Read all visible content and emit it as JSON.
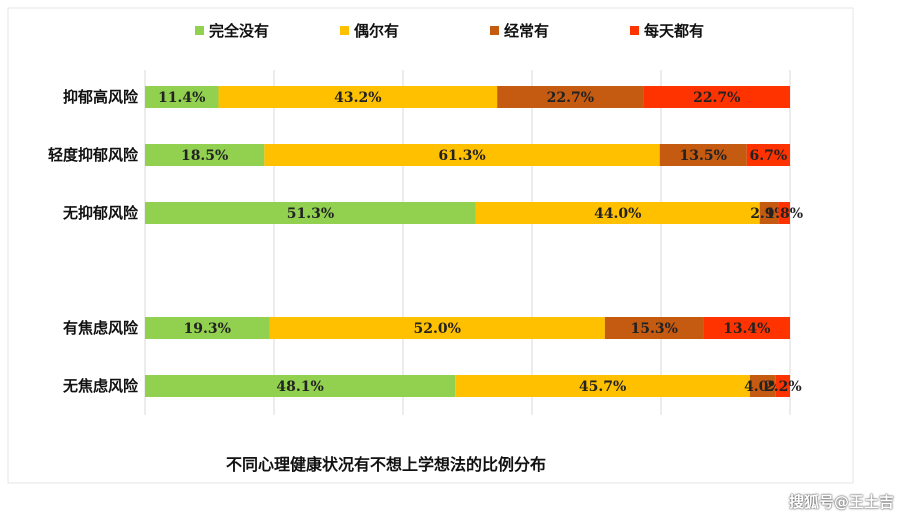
{
  "chart_data": {
    "type": "bar",
    "orientation": "horizontal",
    "stacked": true,
    "percent": true,
    "title": "不同心理健康状况有不想上学想法的比例分布",
    "legend_position": "top",
    "grid": true,
    "xlim": [
      0,
      100
    ],
    "categories": [
      "抑郁高风险",
      "轻度抑郁风险",
      "无抑郁风险",
      "有焦虑风险",
      "无焦虑风险"
    ],
    "series": [
      {
        "name": "完全没有",
        "color": "#92d050",
        "values": [
          11.4,
          18.5,
          51.3,
          19.3,
          48.1
        ],
        "labels": [
          "11.4%",
          "18.5%",
          "51.3%",
          "19.3%",
          "48.1%"
        ]
      },
      {
        "name": "偶尔有",
        "color": "#ffc000",
        "values": [
          43.2,
          61.3,
          44.0,
          52.0,
          45.7
        ],
        "labels": [
          "43.2%",
          "61.3%",
          "44.0%",
          "52.0%",
          "45.7%"
        ]
      },
      {
        "name": "经常有",
        "color": "#c55a11",
        "values": [
          22.7,
          13.5,
          2.9,
          15.3,
          4.0
        ],
        "labels": [
          "22.7%",
          "13.5%",
          "2.9%",
          "15.3%",
          "4.0%"
        ]
      },
      {
        "name": "每天都有",
        "color": "#ff3300",
        "values": [
          22.7,
          6.7,
          1.8,
          13.4,
          2.2
        ],
        "labels": [
          "22.7%",
          "6.7%",
          "1.8%",
          "13.4%",
          "2.2%"
        ]
      }
    ]
  },
  "watermark": "搜狐号@王土吉"
}
